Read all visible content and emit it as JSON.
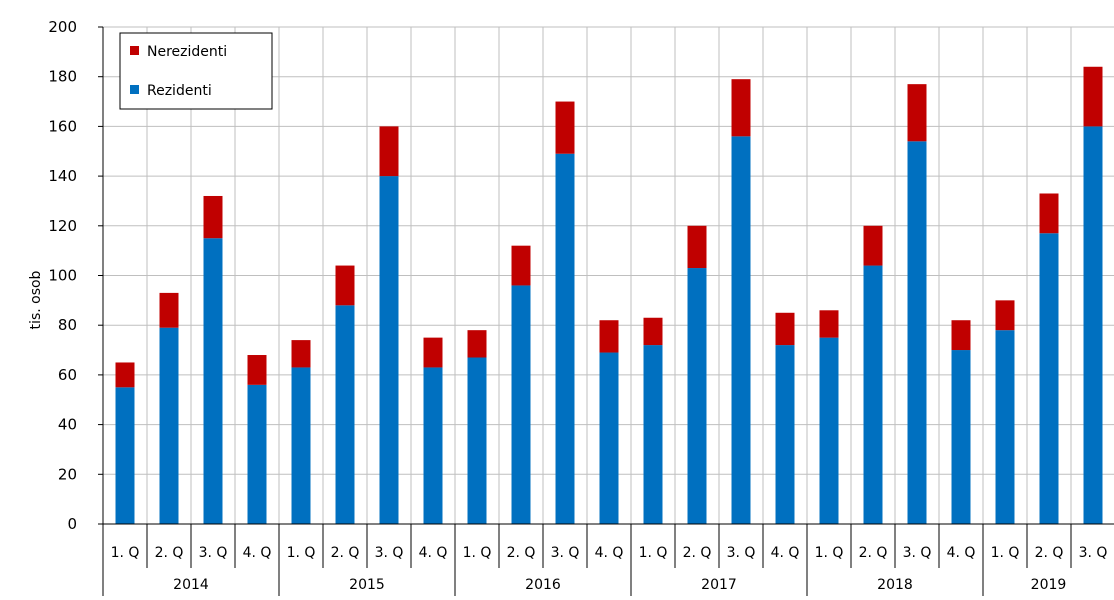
{
  "chart_data": {
    "type": "bar",
    "stacked": true,
    "ylabel": "tis. osob",
    "ylim": [
      0,
      200
    ],
    "ytick_step": 20,
    "grid": true,
    "legend_position": "top-left",
    "quarter_labels": [
      "1. Q",
      "2. Q",
      "3. Q",
      "4. Q"
    ],
    "years": [
      "2014",
      "2015",
      "2016",
      "2017",
      "2018",
      "2019"
    ],
    "categories": [
      "2014 1. Q",
      "2014 2. Q",
      "2014 3. Q",
      "2014 4. Q",
      "2015 1. Q",
      "2015 2. Q",
      "2015 3. Q",
      "2015 4. Q",
      "2016 1. Q",
      "2016 2. Q",
      "2016 3. Q",
      "2016 4. Q",
      "2017 1. Q",
      "2017 2. Q",
      "2017 3. Q",
      "2017 4. Q",
      "2018 1. Q",
      "2018 2. Q",
      "2018 3. Q",
      "2018 4. Q",
      "2019 1. Q",
      "2019 2. Q",
      "2019 3. Q"
    ],
    "series": [
      {
        "name": "Rezidenti",
        "color": "#0070c0",
        "values": [
          55,
          79,
          115,
          56,
          63,
          88,
          140,
          63,
          67,
          96,
          149,
          69,
          72,
          103,
          156,
          72,
          75,
          104,
          154,
          70,
          78,
          117,
          160
        ]
      },
      {
        "name": "Nerezidenti",
        "color": "#c00000",
        "values": [
          10,
          14,
          17,
          12,
          11,
          16,
          20,
          12,
          11,
          16,
          21,
          13,
          11,
          17,
          23,
          13,
          11,
          16,
          23,
          12,
          12,
          16,
          24
        ]
      }
    ],
    "legend_order": [
      "Nerezidenti",
      "Rezidenti"
    ]
  }
}
